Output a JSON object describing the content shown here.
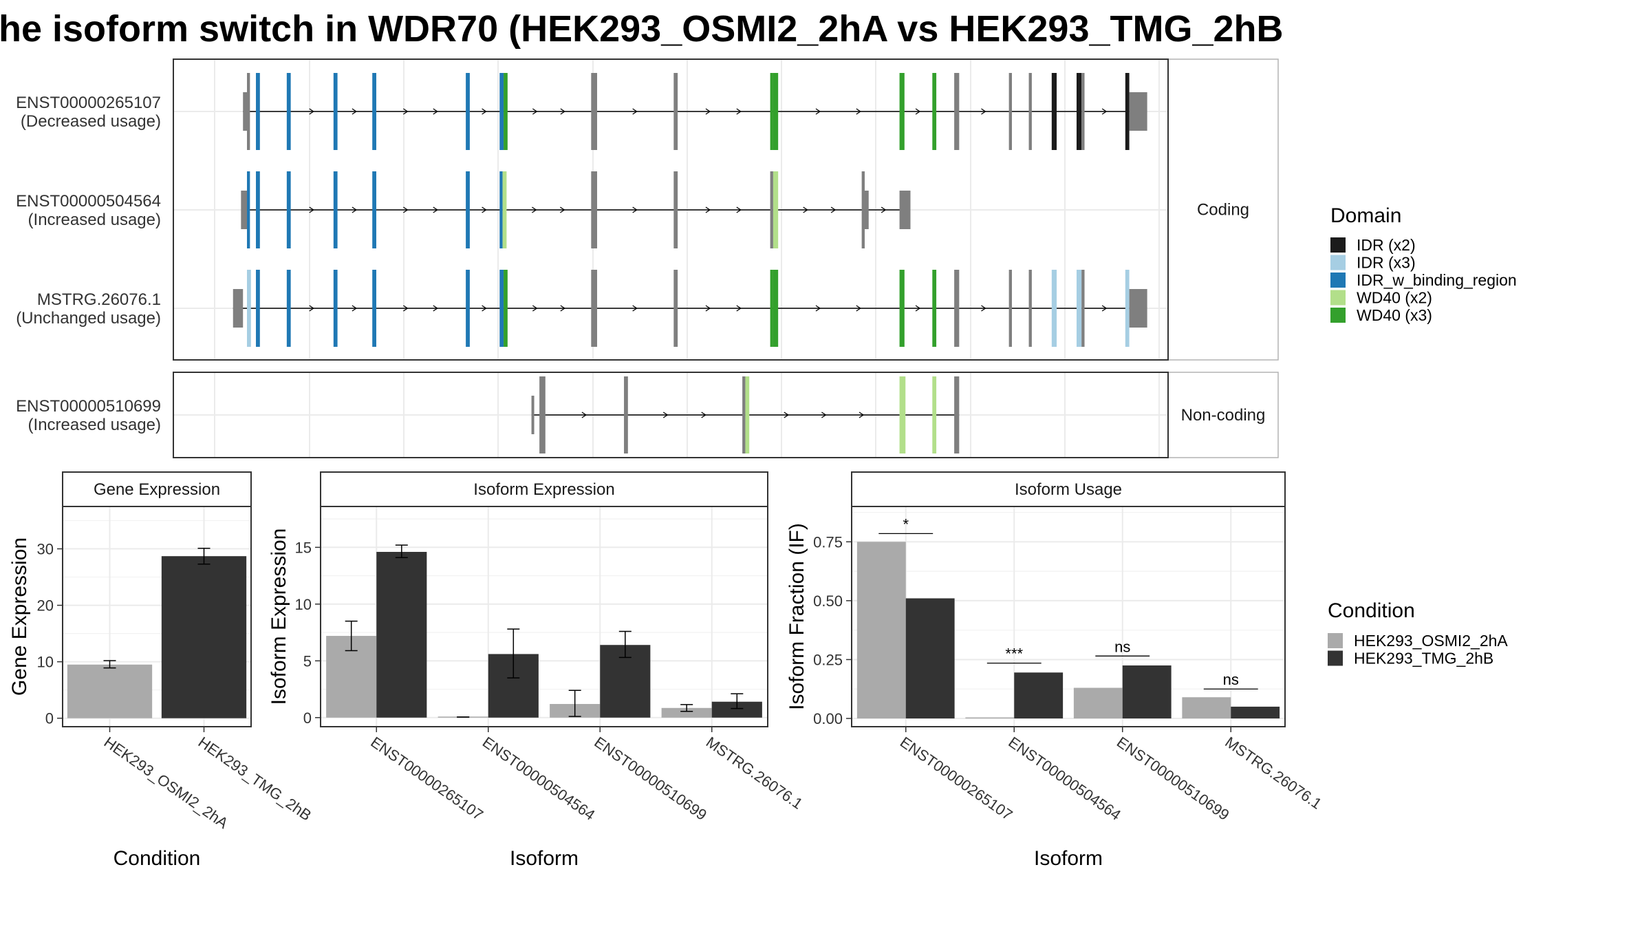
{
  "title": "he isoform switch in WDR70 (HEK293_OSMI2_2hA vs HEK293_TMG_2hB",
  "colors": {
    "IDR (x2)": "#1b1b1b",
    "IDR (x3)": "#a6cee3",
    "IDR_w_binding_region": "#1f78b4",
    "WD40 (x2)": "#b2df8a",
    "WD40 (x3)": "#33a02c",
    "none": "#7f7f7f",
    "HEK293_OSMI2_2hA": "#aaaaaa",
    "HEK293_TMG_2hB": "#333333"
  },
  "structure": {
    "panels": [
      {
        "strip": "Coding",
        "isoforms": [
          {
            "id": "ENST00000265107",
            "usage": "(Decreased usage)",
            "start": 0.07,
            "end": 0.965,
            "exons": [
              {
                "s": 0.07,
                "e": 0.074,
                "d": "none",
                "h": "small"
              },
              {
                "s": 0.074,
                "e": 0.077,
                "d": "none"
              },
              {
                "s": 0.083,
                "e": 0.087,
                "d": "IDR_w_binding_region"
              },
              {
                "s": 0.114,
                "e": 0.118,
                "d": "IDR_w_binding_region"
              },
              {
                "s": 0.161,
                "e": 0.165,
                "d": "IDR_w_binding_region"
              },
              {
                "s": 0.2,
                "e": 0.204,
                "d": "IDR_w_binding_region"
              },
              {
                "s": 0.294,
                "e": 0.298,
                "d": "IDR_w_binding_region"
              },
              {
                "s": 0.328,
                "e": 0.332,
                "d": "IDR_w_binding_region"
              },
              {
                "s": 0.332,
                "e": 0.336,
                "d": "WD40 (x3)"
              },
              {
                "s": 0.42,
                "e": 0.426,
                "d": "none"
              },
              {
                "s": 0.503,
                "e": 0.507,
                "d": "none"
              },
              {
                "s": 0.6,
                "e": 0.603,
                "d": "WD40 (x3)"
              },
              {
                "s": 0.603,
                "e": 0.608,
                "d": "WD40 (x3)"
              },
              {
                "s": 0.73,
                "e": 0.735,
                "d": "WD40 (x3)"
              },
              {
                "s": 0.763,
                "e": 0.767,
                "d": "WD40 (x3)"
              },
              {
                "s": 0.785,
                "e": 0.79,
                "d": "none"
              },
              {
                "s": 0.84,
                "e": 0.843,
                "d": "none"
              },
              {
                "s": 0.86,
                "e": 0.863,
                "d": "none"
              },
              {
                "s": 0.883,
                "e": 0.888,
                "d": "IDR (x2)"
              },
              {
                "s": 0.908,
                "e": 0.913,
                "d": "IDR (x2)"
              },
              {
                "s": 0.913,
                "e": 0.916,
                "d": "none"
              },
              {
                "s": 0.957,
                "e": 0.961,
                "d": "IDR (x2)"
              },
              {
                "s": 0.961,
                "e": 0.979,
                "d": "none",
                "h": "small"
              }
            ]
          },
          {
            "id": "ENST00000504564",
            "usage": "(Increased usage)",
            "start": 0.07,
            "end": 0.74,
            "exons": [
              {
                "s": 0.068,
                "e": 0.074,
                "d": "none",
                "h": "small"
              },
              {
                "s": 0.074,
                "e": 0.077,
                "d": "IDR_w_binding_region"
              },
              {
                "s": 0.083,
                "e": 0.087,
                "d": "IDR_w_binding_region"
              },
              {
                "s": 0.114,
                "e": 0.118,
                "d": "IDR_w_binding_region"
              },
              {
                "s": 0.161,
                "e": 0.165,
                "d": "IDR_w_binding_region"
              },
              {
                "s": 0.2,
                "e": 0.204,
                "d": "IDR_w_binding_region"
              },
              {
                "s": 0.294,
                "e": 0.298,
                "d": "IDR_w_binding_region"
              },
              {
                "s": 0.328,
                "e": 0.331,
                "d": "IDR_w_binding_region"
              },
              {
                "s": 0.331,
                "e": 0.335,
                "d": "WD40 (x2)"
              },
              {
                "s": 0.42,
                "e": 0.426,
                "d": "none"
              },
              {
                "s": 0.503,
                "e": 0.507,
                "d": "none"
              },
              {
                "s": 0.6,
                "e": 0.603,
                "d": "none"
              },
              {
                "s": 0.603,
                "e": 0.608,
                "d": "WD40 (x2)"
              },
              {
                "s": 0.692,
                "e": 0.695,
                "d": "none"
              },
              {
                "s": 0.695,
                "e": 0.699,
                "d": "none",
                "h": "small"
              },
              {
                "s": 0.73,
                "e": 0.741,
                "d": "none",
                "h": "small"
              }
            ]
          },
          {
            "id": "MSTRG.26076.1",
            "usage": "(Unchanged usage)",
            "start": 0.06,
            "end": 0.965,
            "exons": [
              {
                "s": 0.06,
                "e": 0.07,
                "d": "none",
                "h": "small"
              },
              {
                "s": 0.074,
                "e": 0.078,
                "d": "IDR (x3)"
              },
              {
                "s": 0.083,
                "e": 0.087,
                "d": "IDR_w_binding_region"
              },
              {
                "s": 0.114,
                "e": 0.118,
                "d": "IDR_w_binding_region"
              },
              {
                "s": 0.161,
                "e": 0.165,
                "d": "IDR_w_binding_region"
              },
              {
                "s": 0.2,
                "e": 0.204,
                "d": "IDR_w_binding_region"
              },
              {
                "s": 0.294,
                "e": 0.298,
                "d": "IDR_w_binding_region"
              },
              {
                "s": 0.328,
                "e": 0.332,
                "d": "IDR_w_binding_region"
              },
              {
                "s": 0.332,
                "e": 0.336,
                "d": "WD40 (x3)"
              },
              {
                "s": 0.42,
                "e": 0.426,
                "d": "none"
              },
              {
                "s": 0.503,
                "e": 0.507,
                "d": "none"
              },
              {
                "s": 0.6,
                "e": 0.603,
                "d": "WD40 (x3)"
              },
              {
                "s": 0.603,
                "e": 0.608,
                "d": "WD40 (x3)"
              },
              {
                "s": 0.73,
                "e": 0.735,
                "d": "WD40 (x3)"
              },
              {
                "s": 0.763,
                "e": 0.767,
                "d": "WD40 (x3)"
              },
              {
                "s": 0.785,
                "e": 0.79,
                "d": "none"
              },
              {
                "s": 0.84,
                "e": 0.843,
                "d": "none"
              },
              {
                "s": 0.86,
                "e": 0.863,
                "d": "none"
              },
              {
                "s": 0.883,
                "e": 0.888,
                "d": "IDR (x3)"
              },
              {
                "s": 0.908,
                "e": 0.913,
                "d": "IDR (x3)"
              },
              {
                "s": 0.913,
                "e": 0.916,
                "d": "none"
              },
              {
                "s": 0.957,
                "e": 0.961,
                "d": "IDR (x3)"
              },
              {
                "s": 0.961,
                "e": 0.979,
                "d": "none",
                "h": "small"
              }
            ]
          }
        ]
      },
      {
        "strip": "Non-coding",
        "isoforms": [
          {
            "id": "ENST00000510699",
            "usage": "(Increased usage)",
            "start": 0.36,
            "end": 0.79,
            "exons": [
              {
                "s": 0.36,
                "e": 0.362,
                "d": "none",
                "h": "small"
              },
              {
                "s": 0.368,
                "e": 0.374,
                "d": "none"
              },
              {
                "s": 0.453,
                "e": 0.457,
                "d": "none"
              },
              {
                "s": 0.572,
                "e": 0.575,
                "d": "none"
              },
              {
                "s": 0.575,
                "e": 0.579,
                "d": "WD40 (x2)"
              },
              {
                "s": 0.73,
                "e": 0.736,
                "d": "WD40 (x2)"
              },
              {
                "s": 0.763,
                "e": 0.767,
                "d": "WD40 (x2)"
              },
              {
                "s": 0.785,
                "e": 0.79,
                "d": "none"
              }
            ]
          }
        ]
      }
    ]
  },
  "legend_domain": {
    "title": "Domain",
    "items": [
      "IDR (x2)",
      "IDR (x3)",
      "IDR_w_binding_region",
      "WD40 (x2)",
      "WD40 (x3)"
    ]
  },
  "legend_condition": {
    "title": "Condition",
    "items": [
      "HEK293_OSMI2_2hA",
      "HEK293_TMG_2hB"
    ]
  },
  "chart_data": [
    {
      "type": "bar",
      "title": "Gene Expression",
      "xlabel": "Condition",
      "ylabel": "Gene Expression",
      "categories": [
        "HEK293_OSMI2_2hA",
        "HEK293_TMG_2hB"
      ],
      "ylim": [
        -1.5,
        37.5
      ],
      "yticks": [
        0,
        10,
        20,
        30
      ],
      "values": [
        9.5,
        28.7
      ],
      "errors": [
        [
          8.9,
          10.2
        ],
        [
          27.3,
          30.1
        ]
      ],
      "grid": true
    },
    {
      "type": "bar",
      "title": "Isoform Expression",
      "xlabel": "Isoform",
      "ylabel": "Isoform Expression",
      "categories": [
        "ENST00000265107",
        "ENST00000504564",
        "ENST00000510699",
        "MSTRG.26076.1"
      ],
      "ylim": [
        -0.8,
        18.6
      ],
      "yticks": [
        0,
        5,
        10,
        15
      ],
      "series": [
        {
          "name": "HEK293_OSMI2_2hA",
          "values": [
            7.2,
            0.05,
            1.2,
            0.85
          ],
          "errors": [
            [
              5.9,
              8.5
            ],
            [
              0.05,
              0.05
            ],
            [
              0.1,
              2.4
            ],
            [
              0.55,
              1.15
            ]
          ]
        },
        {
          "name": "HEK293_TMG_2hB",
          "values": [
            14.6,
            5.6,
            6.4,
            1.4
          ],
          "errors": [
            [
              14.1,
              15.2
            ],
            [
              3.5,
              7.8
            ],
            [
              5.3,
              7.6
            ],
            [
              0.8,
              2.1
            ]
          ]
        }
      ],
      "grid": true
    },
    {
      "type": "bar",
      "title": "Isoform Usage",
      "xlabel": "Isoform",
      "ylabel": "Isoform Fraction (IF)",
      "categories": [
        "ENST00000265107",
        "ENST00000504564",
        "ENST00000510699",
        "MSTRG.26076.1"
      ],
      "ylim": [
        -0.035,
        0.9
      ],
      "yticks": [
        0,
        0.25,
        0.5,
        0.75
      ],
      "ytick_labels": [
        "0.00",
        "0.25",
        "0.50",
        "0.75"
      ],
      "series": [
        {
          "name": "HEK293_OSMI2_2hA",
          "values": [
            0.75,
            0.0,
            0.13,
            0.09
          ]
        },
        {
          "name": "HEK293_TMG_2hB",
          "values": [
            0.51,
            0.195,
            0.225,
            0.05
          ]
        }
      ],
      "significance": [
        {
          "label": "*",
          "y": 0.785
        },
        {
          "label": "***",
          "y": 0.235
        },
        {
          "label": "ns",
          "y": 0.265
        },
        {
          "label": "ns",
          "y": 0.125
        }
      ],
      "grid": true
    }
  ]
}
